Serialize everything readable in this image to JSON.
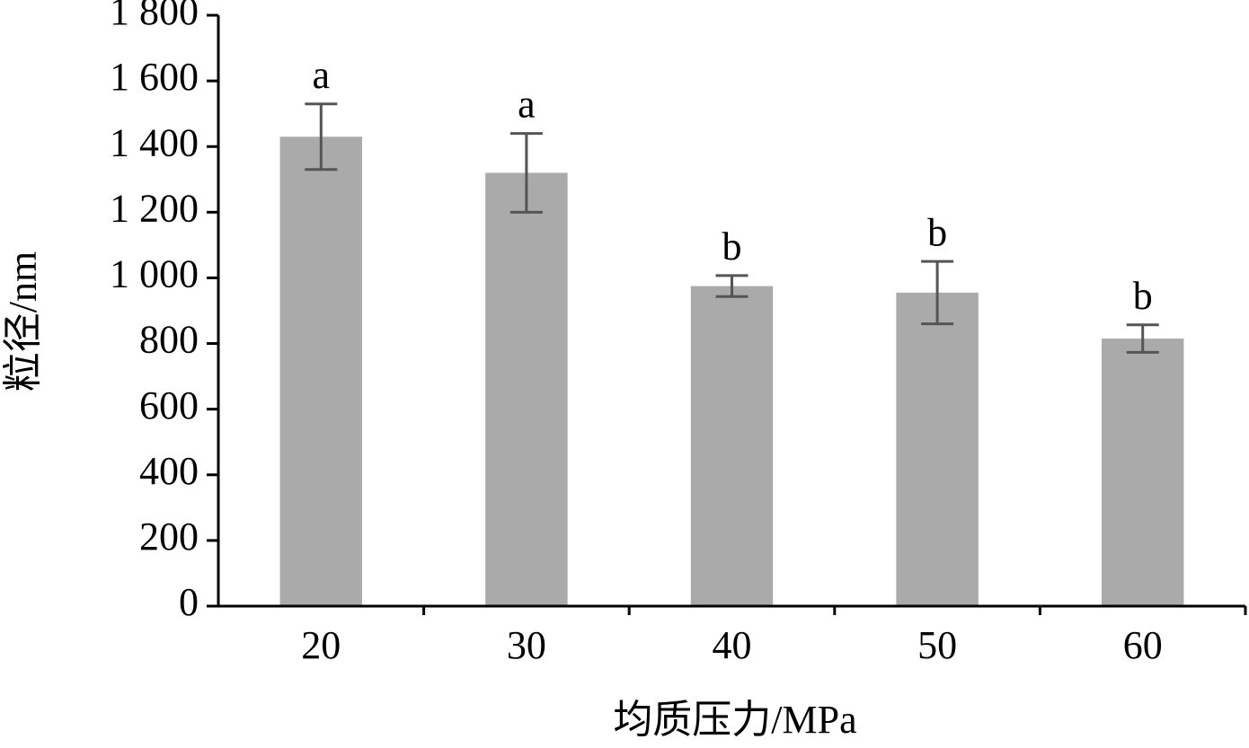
{
  "chart_data": {
    "type": "bar",
    "x_label": "均质压力/MPa",
    "y_label": "粒径/nm",
    "categories": [
      "20",
      "30",
      "40",
      "50",
      "60"
    ],
    "values": [
      1430,
      1320,
      975,
      955,
      815
    ],
    "errors": [
      100,
      120,
      32,
      95,
      42
    ],
    "annotations": [
      "a",
      "a",
      "b",
      "b",
      "b"
    ],
    "color": "#aaaaaa",
    "error_color": "#555555",
    "ylim": [
      0,
      1800
    ],
    "yticks": [
      0,
      200,
      400,
      600,
      800,
      {
        "value": 1000,
        "label": "1 000"
      },
      {
        "value": 1200,
        "label": "1 200"
      },
      {
        "value": 1400,
        "label": "1 400"
      },
      {
        "value": 1600,
        "label": "1 600"
      },
      {
        "value": 1800,
        "label": "1 800"
      }
    ]
  }
}
